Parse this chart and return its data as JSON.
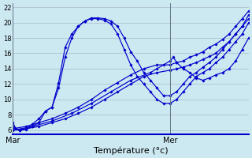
{
  "xlabel": "Température (°c)",
  "bg_color": "#cce8f0",
  "grid_color": "#aabbd0",
  "line_color": "#0000cc",
  "ylim": [
    5.5,
    22.5
  ],
  "yticks": [
    6,
    8,
    10,
    12,
    14,
    16,
    18,
    20,
    22
  ],
  "xlim": [
    0,
    36
  ],
  "day_markers": [
    0,
    24
  ],
  "day_labels": [
    "Mar",
    "Mer"
  ],
  "lines": [
    {
      "x": [
        0,
        0.5,
        1,
        2,
        3,
        4,
        5,
        6,
        7,
        8,
        9,
        10,
        11,
        12,
        13,
        14,
        15,
        16,
        17,
        18,
        19,
        20,
        21,
        22,
        23,
        24,
        25,
        26,
        27,
        28,
        29,
        30,
        31,
        32,
        33,
        34,
        35,
        36
      ],
      "y": [
        7.0,
        6.2,
        6.0,
        6.1,
        6.5,
        7.0,
        8.5,
        9.0,
        12.2,
        16.8,
        18.5,
        19.5,
        20.2,
        20.6,
        20.6,
        20.5,
        20.2,
        19.5,
        18.0,
        16.2,
        15.0,
        13.5,
        12.5,
        11.5,
        10.5,
        10.5,
        11.0,
        12.0,
        13.0,
        13.5,
        14.2,
        14.8,
        15.5,
        16.5,
        17.5,
        18.5,
        19.5,
        20.5
      ]
    },
    {
      "x": [
        0,
        1,
        2,
        3,
        4,
        5,
        6,
        7,
        8,
        9,
        10,
        11,
        12,
        13,
        14,
        15,
        16,
        17,
        18,
        19,
        20,
        21,
        22,
        23,
        24,
        25,
        26,
        27,
        28,
        29,
        30,
        31,
        32,
        33,
        34,
        35,
        36
      ],
      "y": [
        6.5,
        6.0,
        6.2,
        6.8,
        7.5,
        8.5,
        9.0,
        11.5,
        15.5,
        18.0,
        19.5,
        20.2,
        20.5,
        20.5,
        20.3,
        19.8,
        18.5,
        16.5,
        14.5,
        13.0,
        12.0,
        11.0,
        10.0,
        9.5,
        9.5,
        10.0,
        11.0,
        12.0,
        13.0,
        13.5,
        14.0,
        14.8,
        15.5,
        16.5,
        17.5,
        18.5,
        20.0
      ]
    },
    {
      "x": [
        0,
        2,
        4,
        6,
        8,
        10,
        12,
        14,
        16,
        18,
        20,
        22,
        24,
        25,
        26,
        27,
        28,
        29,
        30,
        31,
        32,
        33,
        34,
        35,
        36
      ],
      "y": [
        6.0,
        6.2,
        6.5,
        7.0,
        7.5,
        8.2,
        9.0,
        10.0,
        11.0,
        12.0,
        13.0,
        13.5,
        13.8,
        14.0,
        14.2,
        14.5,
        14.8,
        15.2,
        15.6,
        16.0,
        16.8,
        17.5,
        18.5,
        19.5,
        21.0
      ]
    },
    {
      "x": [
        0,
        2,
        4,
        6,
        8,
        10,
        12,
        14,
        16,
        18,
        20,
        22,
        24,
        25,
        26,
        27,
        28,
        29,
        30,
        31,
        32,
        33,
        34,
        35,
        36
      ],
      "y": [
        6.2,
        6.5,
        7.0,
        7.5,
        8.2,
        9.0,
        10.0,
        11.2,
        12.2,
        13.2,
        14.0,
        14.5,
        14.5,
        14.8,
        15.0,
        15.5,
        15.8,
        16.2,
        16.8,
        17.2,
        17.8,
        18.5,
        19.5,
        20.5,
        21.5
      ]
    },
    {
      "x": [
        0,
        3,
        6,
        9,
        12,
        15,
        18,
        21,
        22,
        23,
        24,
        24.5,
        25,
        26,
        27,
        28,
        29,
        30,
        31,
        32,
        33,
        34,
        35,
        36
      ],
      "y": [
        6.0,
        6.5,
        7.2,
        8.2,
        9.5,
        11.0,
        12.5,
        13.5,
        14.0,
        14.5,
        15.0,
        15.5,
        14.8,
        14.0,
        13.5,
        12.8,
        12.5,
        12.8,
        13.2,
        13.5,
        14.0,
        15.0,
        16.5,
        18.0
      ]
    }
  ]
}
